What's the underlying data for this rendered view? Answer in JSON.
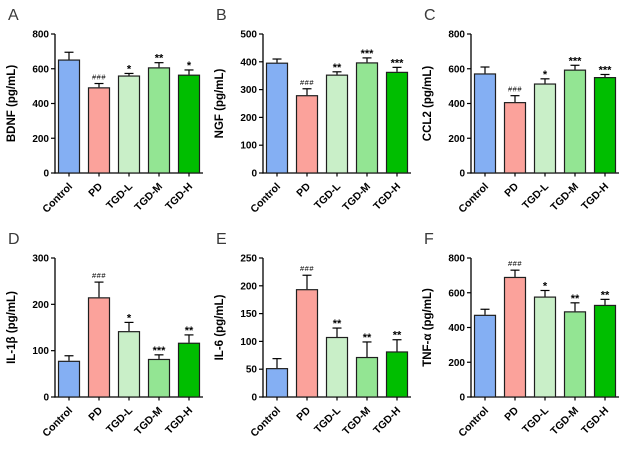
{
  "figure": {
    "background": "#ffffff",
    "groups": [
      "Control",
      "PD",
      "TGD-L",
      "TGD-M",
      "TGD-H"
    ],
    "bar_colors": [
      "#84AFF3",
      "#FBA29B",
      "#C9EFC8",
      "#93E593",
      "#00BE00"
    ],
    "bar_border_color": "#1f1f1f",
    "axis_color": "#000000",
    "error_bar_color": "#000000",
    "annotation_color": "#000000",
    "panel_letter_color": "#3a3a3a",
    "tick_label_color": "#000000",
    "unit": "pg/mL"
  },
  "chart_data": [
    {
      "type": "bar",
      "panel": "A",
      "ylabel": "BDNF (pg/mL)",
      "categories": [
        "Control",
        "PD",
        "TGD-L",
        "TGD-M",
        "TGD-H"
      ],
      "values": [
        650,
        490,
        558,
        605,
        563
      ],
      "errors": [
        45,
        25,
        15,
        30,
        30
      ],
      "annotations": [
        "",
        "###",
        "*",
        "**",
        "*"
      ],
      "ylim": [
        0,
        800
      ],
      "yticks": [
        0,
        200,
        400,
        600,
        800
      ]
    },
    {
      "type": "bar",
      "panel": "B",
      "ylabel": "NGF (pg/mL)",
      "categories": [
        "Control",
        "PD",
        "TGD-L",
        "TGD-M",
        "TGD-H"
      ],
      "values": [
        395,
        278,
        352,
        396,
        362
      ],
      "errors": [
        15,
        25,
        12,
        18,
        18
      ],
      "annotations": [
        "",
        "###",
        "**",
        "***",
        "***"
      ],
      "ylim": [
        0,
        500
      ],
      "yticks": [
        0,
        100,
        200,
        300,
        400,
        500
      ]
    },
    {
      "type": "bar",
      "panel": "C",
      "ylabel": "CCL2 (pg/mL)",
      "categories": [
        "Control",
        "PD",
        "TGD-L",
        "TGD-M",
        "TGD-H"
      ],
      "values": [
        570,
        405,
        512,
        592,
        549
      ],
      "errors": [
        40,
        40,
        30,
        28,
        18
      ],
      "annotations": [
        "",
        "###",
        "*",
        "***",
        "***"
      ],
      "ylim": [
        0,
        800
      ],
      "yticks": [
        0,
        200,
        400,
        600,
        800
      ]
    },
    {
      "type": "bar",
      "panel": "D",
      "ylabel": "IL-1β (pg/mL)",
      "categories": [
        "Control",
        "PD",
        "TGD-L",
        "TGD-M",
        "TGD-H"
      ],
      "values": [
        77,
        214,
        141,
        81,
        116
      ],
      "errors": [
        12,
        34,
        20,
        10,
        18
      ],
      "annotations": [
        "",
        "###",
        "*",
        "***",
        "**"
      ],
      "ylim": [
        0,
        300
      ],
      "yticks": [
        0,
        100,
        200,
        300
      ]
    },
    {
      "type": "bar",
      "panel": "E",
      "ylabel": "IL-6 (pg/mL)",
      "categories": [
        "Control",
        "PD",
        "TGD-L",
        "TGD-M",
        "TGD-H"
      ],
      "values": [
        51,
        193,
        107,
        71,
        81
      ],
      "errors": [
        18,
        26,
        17,
        28,
        22
      ],
      "annotations": [
        "",
        "###",
        "**",
        "**",
        "**"
      ],
      "ylim": [
        0,
        250
      ],
      "yticks": [
        0,
        50,
        100,
        150,
        200,
        250
      ]
    },
    {
      "type": "bar",
      "panel": "F",
      "ylabel": "TNF-α (pg/mL)",
      "categories": [
        "Control",
        "PD",
        "TGD-L",
        "TGD-M",
        "TGD-H"
      ],
      "values": [
        470,
        688,
        575,
        490,
        527
      ],
      "errors": [
        35,
        42,
        38,
        52,
        35
      ],
      "annotations": [
        "",
        "###",
        "*",
        "**",
        "**"
      ],
      "ylim": [
        0,
        800
      ],
      "yticks": [
        0,
        200,
        400,
        600,
        800
      ]
    }
  ]
}
